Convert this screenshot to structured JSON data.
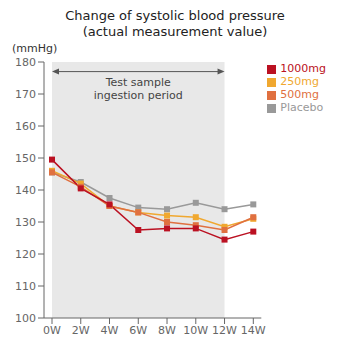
{
  "chart_data": {
    "type": "line",
    "title": "Change of systolic blood pressure\n(actual measurement value)",
    "ylabel": "(mmHg)",
    "categories": [
      "0W",
      "2W",
      "4W",
      "6W",
      "8W",
      "10W",
      "12W",
      "14W"
    ],
    "series": [
      {
        "name": "Placebo",
        "color": "#999999",
        "values": [
          145.5,
          142.5,
          137.5,
          134.5,
          134.0,
          136.0,
          134.0,
          135.5
        ]
      },
      {
        "name": "250mg",
        "color": "#f0a830",
        "values": [
          146.0,
          142.0,
          135.0,
          133.0,
          132.0,
          131.5,
          128.5,
          131.0
        ]
      },
      {
        "name": "500mg",
        "color": "#e07040",
        "values": [
          145.5,
          141.0,
          135.0,
          133.0,
          130.0,
          129.0,
          127.5,
          131.5
        ]
      },
      {
        "name": "1000mg",
        "color": "#bb1122",
        "values": [
          149.5,
          140.5,
          135.5,
          127.5,
          128.0,
          128.0,
          124.5,
          127.0
        ]
      }
    ],
    "ylim": [
      100,
      180
    ],
    "yticks": [
      100,
      110,
      120,
      130,
      140,
      150,
      160,
      170,
      180
    ],
    "marker": "square",
    "grid": false,
    "legend": "upper right",
    "annotations": [
      {
        "text": "Test sample\ningestion period",
        "x_start": "0W",
        "x_end": "12W",
        "y": 177,
        "color": "#e8e8e8"
      }
    ]
  }
}
